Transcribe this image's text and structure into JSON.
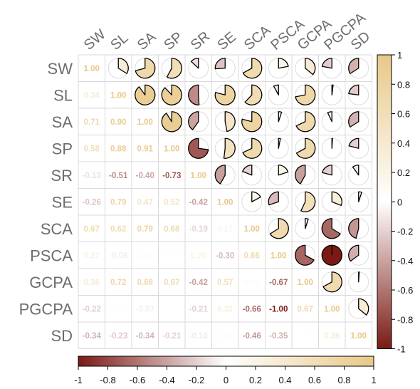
{
  "chart_data": {
    "type": "heatmap",
    "subtype": "correlation-matrix (lower: numeric, upper: pie)",
    "variables": [
      "SW",
      "SL",
      "SA",
      "SP",
      "SR",
      "SE",
      "SCA",
      "PSCA",
      "GCPA",
      "PGCPA",
      "SD"
    ],
    "matrix": [
      [
        1.0,
        0.34,
        0.71,
        0.58,
        -0.13,
        -0.26,
        0.67,
        0.22,
        0.36,
        -0.22,
        -0.34
      ],
      [
        0.34,
        1.0,
        0.9,
        0.88,
        -0.51,
        0.79,
        0.62,
        -0.08,
        0.72,
        0.02,
        -0.23
      ],
      [
        0.71,
        0.9,
        1.0,
        0.91,
        -0.4,
        0.47,
        0.79,
        0.05,
        0.68,
        -0.07,
        -0.34
      ],
      [
        0.58,
        0.88,
        0.91,
        1.0,
        -0.73,
        0.52,
        0.68,
        0.03,
        0.67,
        0.01,
        -0.21
      ],
      [
        -0.13,
        -0.51,
        -0.4,
        -0.73,
        1.0,
        -0.42,
        -0.19,
        0.2,
        -0.42,
        -0.21,
        -0.1
      ],
      [
        -0.26,
        0.79,
        0.47,
        0.52,
        -0.42,
        1.0,
        0.17,
        -0.3,
        0.57,
        0.31,
        0.05
      ],
      [
        0.67,
        0.62,
        0.79,
        0.68,
        -0.19,
        0.17,
        1.0,
        0.66,
        0.05,
        -0.66,
        -0.46
      ],
      [
        0.22,
        -0.08,
        0.05,
        0.03,
        0.2,
        -0.3,
        0.66,
        1.0,
        -0.67,
        -1.0,
        -0.35
      ],
      [
        0.36,
        0.72,
        0.68,
        0.67,
        -0.42,
        0.57,
        0.05,
        -0.67,
        1.0,
        0.67,
        0.01
      ],
      [
        -0.22,
        0.02,
        -0.07,
        0.01,
        -0.21,
        0.31,
        -0.66,
        -1.0,
        0.67,
        1.0,
        0.36
      ],
      [
        -0.34,
        -0.23,
        -0.34,
        -0.21,
        -0.1,
        0.05,
        -0.46,
        -0.35,
        0.01,
        0.36,
        1.0
      ]
    ],
    "lower_labels": [
      [
        "1.00",
        "",
        "",
        "",
        "",
        "",
        "",
        "",
        "",
        "",
        ""
      ],
      [
        "0.34",
        "1.00",
        "",
        "",
        "",
        "",
        "",
        "",
        "",
        "",
        ""
      ],
      [
        "0.71",
        "0.90",
        "1.00",
        "",
        "",
        "",
        "",
        "",
        "",
        "",
        ""
      ],
      [
        "0.58",
        "0.88",
        "0.91",
        "1.00",
        "",
        "",
        "",
        "",
        "",
        "",
        ""
      ],
      [
        "-0.13",
        "-0.51",
        "-0.40",
        "-0.73",
        "1.00",
        "",
        "",
        "",
        "",
        "",
        ""
      ],
      [
        "-0.26",
        "0.79",
        "0.47",
        "0.52",
        "-0.42",
        "1.00",
        "",
        "",
        "",
        "",
        ""
      ],
      [
        "0.67",
        "0.62",
        "0.79",
        "0.68",
        "-0.19",
        "0.17",
        "1.00",
        "",
        "",
        "",
        ""
      ],
      [
        "0.22",
        "-0.08",
        "0.05",
        "0.03",
        "0.20",
        "-0.30",
        "0.66",
        "1.00",
        "",
        "",
        ""
      ],
      [
        "0.36",
        "0.72",
        "0.68",
        "0.67",
        "-0.42",
        "0.57",
        "0.05",
        "-0.67",
        "1.00",
        "",
        ""
      ],
      [
        "-0.22",
        "0.02",
        "-0.07",
        "0.01",
        "-0.21",
        "0.31",
        "-0.66",
        "-1.00",
        "0.67",
        "1.00",
        ""
      ],
      [
        "-0.34",
        "-0.23",
        "-0.34",
        "-0.21",
        "-0.10",
        "0.05",
        "-0.46",
        "-0.35",
        "0.01",
        "0.36",
        "1.00"
      ]
    ],
    "colorbar_ticks": [
      "-1",
      "-0.8",
      "-0.6",
      "-0.4",
      "-0.2",
      "0",
      "0.2",
      "0.4",
      "0.6",
      "0.8",
      "1"
    ],
    "range": [
      -1,
      1
    ],
    "colors": {
      "negative": "#7b1a14",
      "zero": "#ffffff",
      "positive": "#e8c888",
      "grid": "#d9d9d9",
      "label": "#7a7a7a"
    }
  }
}
